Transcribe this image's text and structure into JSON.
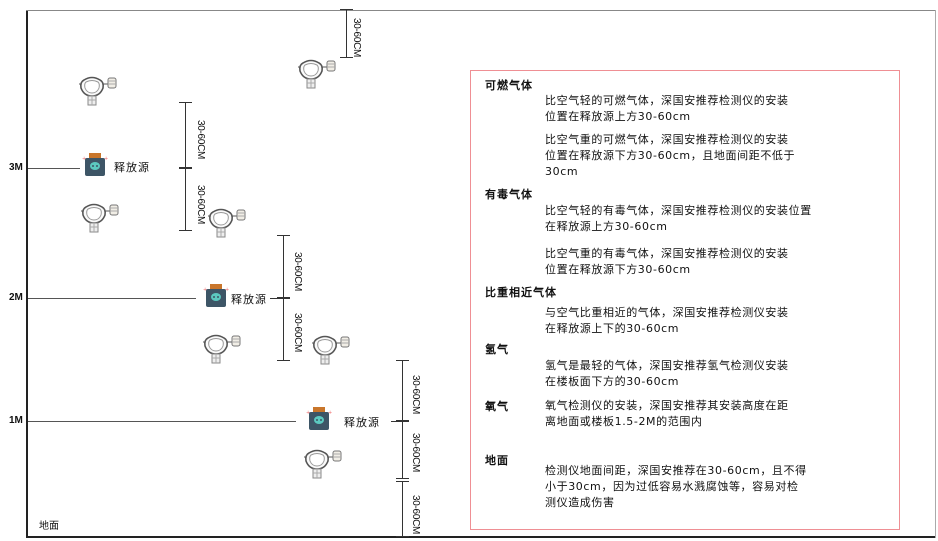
{
  "levels": {
    "m3": "3M",
    "m2": "2M",
    "m1": "1M",
    "ground": "地面"
  },
  "source_label": "释放源",
  "dimension_label": "30-60CM",
  "colors": {
    "box_border": "#ef8f94",
    "source_body": "#3d5566",
    "source_cap": "#c9762b",
    "source_face": "#5cc9c0"
  },
  "legend": {
    "flammable": {
      "title": "可燃气体",
      "lighter": [
        "比空气轻的可燃气体，深国安推荐检测仪的安装",
        "位置在释放源上方30-60cm"
      ],
      "heavier": [
        "比空气重的可燃气体，深国安推荐检测仪的安装",
        "位置在释放源下方30-60cm，且地面间距不低于",
        "30cm"
      ]
    },
    "toxic": {
      "title": "有毒气体",
      "lighter": [
        "比空气轻的有毒气体，深国安推荐检测仪的安装位置",
        "在释放源上方30-60cm"
      ],
      "heavier": [
        "比空气重的有毒气体，深国安推荐检测仪的安装",
        "位置在释放源下方30-60cm"
      ]
    },
    "similar": {
      "title": "比重相近气体",
      "text": [
        "与空气比重相近的气体，深国安推荐检测仪安装",
        "在释放源上下的30-60cm"
      ]
    },
    "hydrogen": {
      "title": "氢气",
      "text": [
        "氢气是最轻的气体，深国安推荐氢气检测仪安装",
        "在楼板面下方的30-60cm"
      ]
    },
    "oxygen": {
      "title": "氧气",
      "text": [
        "氧气检测仪的安装，深国安推荐其安装高度在距",
        "离地面或楼板1.5-2M的范围内"
      ]
    },
    "ground": {
      "title": "地面",
      "text": [
        "检测仪地面间距，深国安推荐在30-60cm，且不得",
        "小于30cm，因为过低容易水溅腐蚀等，容易对检",
        "测仪造成伤害"
      ]
    }
  }
}
